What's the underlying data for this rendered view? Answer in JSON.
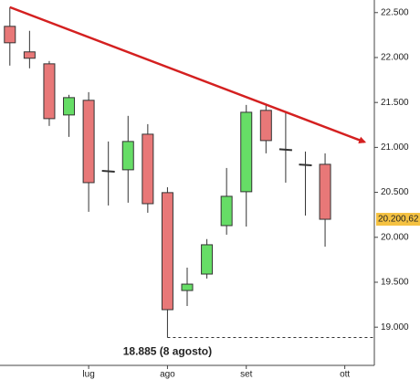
{
  "chart_data": {
    "type": "candlestick",
    "x": [
      0,
      1,
      2,
      3,
      4,
      5,
      6,
      7,
      8,
      9,
      10,
      11,
      12,
      13,
      14,
      15,
      16
    ],
    "open": [
      22347,
      22063,
      21930,
      21361,
      21524,
      20740,
      20751,
      21147,
      20497,
      19408,
      19591,
      20130,
      20507,
      21412,
      20980,
      20810,
      20812
    ],
    "high": [
      22561,
      22297,
      21961,
      21585,
      21615,
      21066,
      21351,
      21259,
      20557,
      19663,
      19980,
      20771,
      21473,
      21483,
      21391,
      20954,
      20934
    ],
    "low": [
      21910,
      21880,
      21239,
      21117,
      20283,
      20354,
      20385,
      20273,
      18885,
      19235,
      19541,
      20029,
      20120,
      20934,
      20608,
      20242,
      19896
    ],
    "close": [
      22164,
      21992,
      21320,
      21554,
      20608,
      20730,
      21066,
      20374,
      19195,
      19479,
      19917,
      20456,
      21391,
      21076,
      20970,
      20800,
      20200.62
    ],
    "up_color": "#66dd66",
    "down_color": "#e87878",
    "doji_color": "#333333",
    "xlim": [
      -0.5,
      18.5
    ],
    "xticks": [
      {
        "value": 4,
        "label": "lug"
      },
      {
        "value": 8,
        "label": "ago"
      },
      {
        "value": 12,
        "label": "set"
      },
      {
        "value": 17,
        "label": "ott"
      }
    ],
    "ylim": [
      18575,
      22640
    ],
    "yticks": [
      {
        "value": 19000,
        "label": "19.000"
      },
      {
        "value": 19500,
        "label": "19.500"
      },
      {
        "value": 20000,
        "label": "20.000"
      },
      {
        "value": 20500,
        "label": "20.500"
      },
      {
        "value": 21000,
        "label": "21.000"
      },
      {
        "value": 21500,
        "label": "21.500"
      },
      {
        "value": 22000,
        "label": "22.000"
      },
      {
        "value": 22500,
        "label": "22.500"
      }
    ],
    "last_price": {
      "value": 20200.62,
      "label": "20.200,62"
    },
    "trendline": {
      "color": "#d42020",
      "x": [
        0,
        18
      ],
      "y": [
        22560,
        21060
      ]
    },
    "annotation": {
      "text": "18.885 (8 agosto)",
      "value": 18885
    }
  }
}
